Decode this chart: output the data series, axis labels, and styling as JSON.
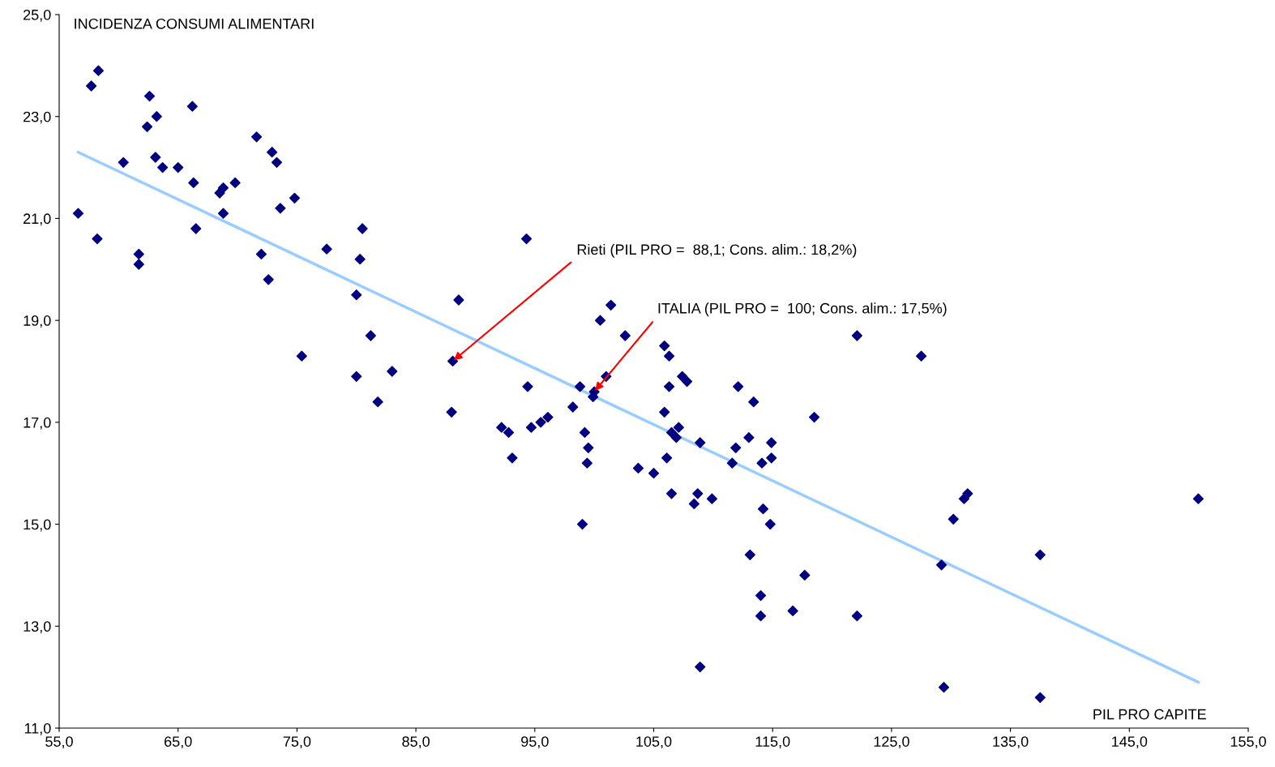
{
  "chart_data": {
    "type": "scatter",
    "xlabel": "PIL PRO CAPITE",
    "ylabel": "INCIDENZA CONSUMI ALIMENTARI",
    "xlim": [
      55,
      155
    ],
    "ylim": [
      11,
      25
    ],
    "xticks": [
      {
        "value": 55,
        "label": "55,0"
      },
      {
        "value": 65,
        "label": "65,0"
      },
      {
        "value": 75,
        "label": "75,0"
      },
      {
        "value": 85,
        "label": "85,0"
      },
      {
        "value": 95,
        "label": "95,0"
      },
      {
        "value": 105,
        "label": "105,0"
      },
      {
        "value": 115,
        "label": "115,0"
      },
      {
        "value": 125,
        "label": "125,0"
      },
      {
        "value": 135,
        "label": "135,0"
      },
      {
        "value": 145,
        "label": "145,0"
      },
      {
        "value": 155,
        "label": "155,0"
      }
    ],
    "yticks": [
      {
        "value": 11,
        "label": "11,0"
      },
      {
        "value": 13,
        "label": "13,0"
      },
      {
        "value": 15,
        "label": "15,0"
      },
      {
        "value": 17,
        "label": "17,0"
      },
      {
        "value": 19,
        "label": "19,0"
      },
      {
        "value": 21,
        "label": "21,0"
      },
      {
        "value": 23,
        "label": "23,0"
      },
      {
        "value": 25,
        "label": "25,0"
      }
    ],
    "grid": false,
    "legend": false,
    "marker": "diamond",
    "series": [
      {
        "color": "#000080",
        "x": [
          56.6,
          57.7,
          58.3,
          58.2,
          60.4,
          61.7,
          61.7,
          62.4,
          62.6,
          63.2,
          63.1,
          63.7,
          65.0,
          66.2,
          66.3,
          66.5,
          68.5,
          68.8,
          68.8,
          69.8,
          71.6,
          72.0,
          72.6,
          72.9,
          73.3,
          73.6,
          74.8,
          75.4,
          77.5,
          80.0,
          80.0,
          80.3,
          80.5,
          81.2,
          81.8,
          83.0,
          88.1,
          88.0,
          88.6,
          92.2,
          92.8,
          93.1,
          94.3,
          94.4,
          94.7,
          95.5,
          96.1,
          98.2,
          98.8,
          99.0,
          99.2,
          99.5,
          99.4,
          99.9,
          100.0,
          100.5,
          101.0,
          101.4,
          102.6,
          103.7,
          105.0,
          105.9,
          105.9,
          106.3,
          106.3,
          106.1,
          106.5,
          106.5,
          106.9,
          107.1,
          107.4,
          107.8,
          108.9,
          108.7,
          108.4,
          108.9,
          109.9,
          111.6,
          111.9,
          112.1,
          113.0,
          113.1,
          113.4,
          114.0,
          114.0,
          114.1,
          114.2,
          114.8,
          114.9,
          114.9,
          116.7,
          117.7,
          118.5,
          122.1,
          122.1,
          127.5,
          129.2,
          129.4,
          130.2,
          131.1,
          131.4,
          137.5,
          137.5,
          150.8
        ],
        "values": [
          21.1,
          23.6,
          23.9,
          20.6,
          22.1,
          20.3,
          20.1,
          22.8,
          23.4,
          23.0,
          22.2,
          22.0,
          22.0,
          23.2,
          21.7,
          20.8,
          21.5,
          21.6,
          21.1,
          21.7,
          22.6,
          20.3,
          19.8,
          22.3,
          22.1,
          21.2,
          21.4,
          18.3,
          20.4,
          17.9,
          19.5,
          20.2,
          20.8,
          18.7,
          17.4,
          18.0,
          18.2,
          17.2,
          19.4,
          16.9,
          16.8,
          16.3,
          20.6,
          17.7,
          16.9,
          17.0,
          17.1,
          17.3,
          17.7,
          15.0,
          16.8,
          16.5,
          16.2,
          17.5,
          17.6,
          19.0,
          17.9,
          19.3,
          18.7,
          16.1,
          16.0,
          18.5,
          17.2,
          18.3,
          17.7,
          16.3,
          15.6,
          16.8,
          16.7,
          16.9,
          17.9,
          17.8,
          16.6,
          15.6,
          15.4,
          12.2,
          15.5,
          16.2,
          16.5,
          17.7,
          16.7,
          14.4,
          17.4,
          13.6,
          13.2,
          16.2,
          15.3,
          15.0,
          16.3,
          16.6,
          13.3,
          14.0,
          17.1,
          18.7,
          13.2,
          18.3,
          14.2,
          11.8,
          15.1,
          15.5,
          15.6,
          11.6,
          14.4,
          15.5
        ]
      },
      {
        "type": "line",
        "color": "#99ccff",
        "marker": "none",
        "line_style": "solid",
        "x": [
          56.6,
          150.8
        ],
        "values": [
          22.3,
          11.9
        ]
      }
    ],
    "annotations": [
      {
        "text": "Rieti (PIL PRO =  88,1; Cons. alim.: 18,2%)",
        "x": 88.1,
        "y": 18.2
      },
      {
        "text": "ITALIA (PIL PRO =  100; Cons. alim.: 17,5%)",
        "x": 100.0,
        "y": 17.6
      }
    ]
  }
}
